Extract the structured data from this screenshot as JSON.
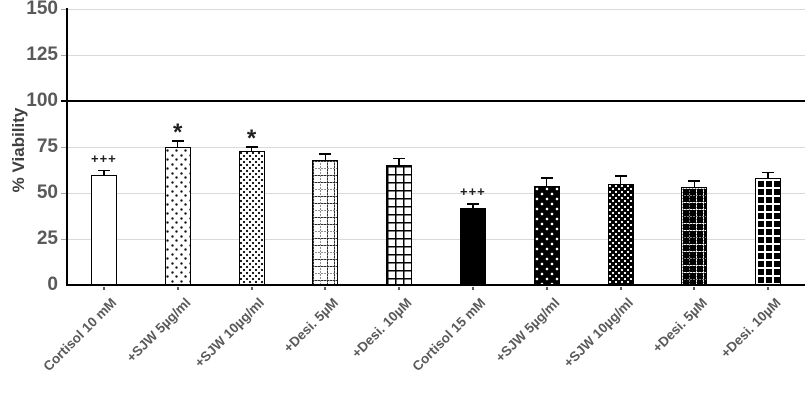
{
  "chart_data": {
    "type": "bar",
    "title": "",
    "xlabel": "",
    "ylabel": "% Viability",
    "ylim": [
      0,
      150
    ],
    "yticks": [
      0,
      25,
      50,
      75,
      100,
      125,
      150
    ],
    "reference_line_y": 100,
    "grid": true,
    "legend": false,
    "categories": [
      "Cortisol 10 mM",
      "+SJW 5µg/ml",
      "+SJW 10µg/ml",
      "+Desi. 5µM",
      "+Desi. 10µM",
      "Cortisol 15 mM",
      "+SJW 5µg/ml",
      "+SJW 10µg/ml",
      "+Desi. 5µM",
      "+Desi. 10µM"
    ],
    "values": [
      60,
      75,
      73,
      68,
      65,
      42,
      54,
      55,
      53,
      58
    ],
    "errors_plus": [
      2,
      3,
      2,
      3,
      3.5,
      2,
      4,
      4,
      3.5,
      3
    ],
    "annotations": [
      "+++",
      "*",
      "*",
      "",
      "",
      "+++",
      "",
      "",
      "",
      ""
    ],
    "bar_patterns": [
      "white",
      "dots-sparse",
      "dots-dense",
      "grid-dotted",
      "grid-solid",
      "black",
      "white-dots-sparse",
      "white-dots-dense",
      "white-grid-dotted",
      "white-grid-solid"
    ]
  },
  "colors": {
    "background": "#ffffff",
    "axis": "#000000",
    "gridline": "#d9d9d9",
    "reference_line": "#000000",
    "tick_label": "#595959",
    "axis_title": "#404040",
    "bar_outline": "#000000",
    "bar_dark_fill": "#000000",
    "annotation": "#1f1f1f"
  }
}
